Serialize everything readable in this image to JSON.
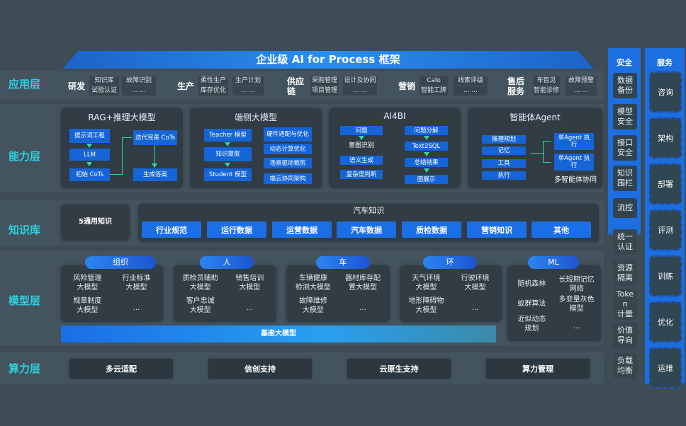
{
  "title": "企业级 AI for Process 框架",
  "layers": [
    "应用层",
    "能力层",
    "知识库",
    "模型层",
    "算力层"
  ],
  "application": [
    {
      "name": "研发",
      "boxes": [
        [
          "知识库",
          "试验认证"
        ],
        [
          "故障识别",
          "... ..."
        ]
      ]
    },
    {
      "name": "生产",
      "boxes": [
        [
          "柔性生产",
          "库存优化"
        ],
        [
          "生产计划",
          "... ..."
        ]
      ]
    },
    {
      "name": "供应链",
      "boxes": [
        [
          "采购管理",
          "项目管理"
        ],
        [
          "设计及协同",
          "... ..."
        ]
      ]
    },
    {
      "name": "营销",
      "boxes": [
        [
          "Calo",
          "智能工牌"
        ],
        [
          "线索评级",
          "... ..."
        ]
      ]
    },
    {
      "name": "售后服务",
      "boxes": [
        [
          "车智见",
          "智能诊修"
        ],
        [
          "故障预警",
          "... ..."
        ]
      ]
    }
  ],
  "capability": {
    "rag": {
      "title": "RAG+推理大模型",
      "items": [
        "提示词工程",
        "LLM",
        "初始 CoTs",
        "迭代完善 CoTs",
        "生成答案"
      ]
    },
    "edge": {
      "title": "端侧大模型",
      "left": [
        "Teacher 模型",
        "知识提取",
        "Student 模型"
      ],
      "right": [
        "硬件适配与优化",
        "动态计算优化",
        "场景驱动裁剪",
        "端云协同架构"
      ]
    },
    "ai4bi": {
      "title": "AI4BI",
      "left": [
        "问题",
        "意图识别",
        "语义生成",
        "复杂度判断"
      ],
      "right": [
        "问题分解",
        "Text2SQL",
        "总结结果",
        "图展示"
      ]
    },
    "agent": {
      "title": "智能体Agent",
      "left": [
        "推理规划",
        "记忆",
        "工具",
        "执行"
      ],
      "right": [
        "单Agent 执行",
        "单Agent 执行"
      ],
      "caption": "多智能体协同"
    }
  },
  "knowledge": {
    "general": "5通用知识",
    "auto_title": "汽车知识",
    "items": [
      "行业规范",
      "运行数据",
      "运营数据",
      "汽车数据",
      "质检数据",
      "营销知识",
      "其他"
    ]
  },
  "models": [
    {
      "tag": "组织",
      "items": [
        "风险管理\n大模型",
        "行业标准\n大模型",
        "规章制度\n大模型",
        "..."
      ]
    },
    {
      "tag": "人",
      "items": [
        "质检员辅助\n大模型",
        "销售培训\n大模型",
        "客户忠诚\n大模型",
        "..."
      ]
    },
    {
      "tag": "车",
      "items": [
        "车辆健康\n检测大模型",
        "器材库存配\n置大模型",
        "故障维修\n大模型",
        "..."
      ]
    },
    {
      "tag": "环",
      "items": [
        "天气环境\n大模型",
        "行驶环境\n大模型",
        "地形障碍物\n大模型",
        "..."
      ]
    },
    {
      "tag": "ML",
      "items": [
        "随机森林",
        "长短期记忆\n网络",
        "蚁群算法",
        "多变量灰色\n模型",
        "近似动态\n规划",
        "..."
      ]
    }
  ],
  "base_model": "基座大模型",
  "compute": [
    "多云适配",
    "信创支持",
    "云原生支持",
    "算力管理"
  ],
  "security": {
    "title": "安全",
    "items": [
      "数据\n备份",
      "模型\n安全",
      "接口\n安全",
      "知识\n围栏",
      "流控",
      "统一\n认证",
      "资源\n隔离",
      "Toke\nn\n计量",
      "价值\n导向",
      "负载\n均衡"
    ]
  },
  "services": {
    "title": "服务",
    "items": [
      "咨询",
      "架构",
      "部署",
      "评测",
      "训练",
      "优化",
      "运维"
    ]
  },
  "colors": {
    "accent": "#1c6fe0",
    "label": "#2fd0e0",
    "background": "#3d4c55"
  }
}
